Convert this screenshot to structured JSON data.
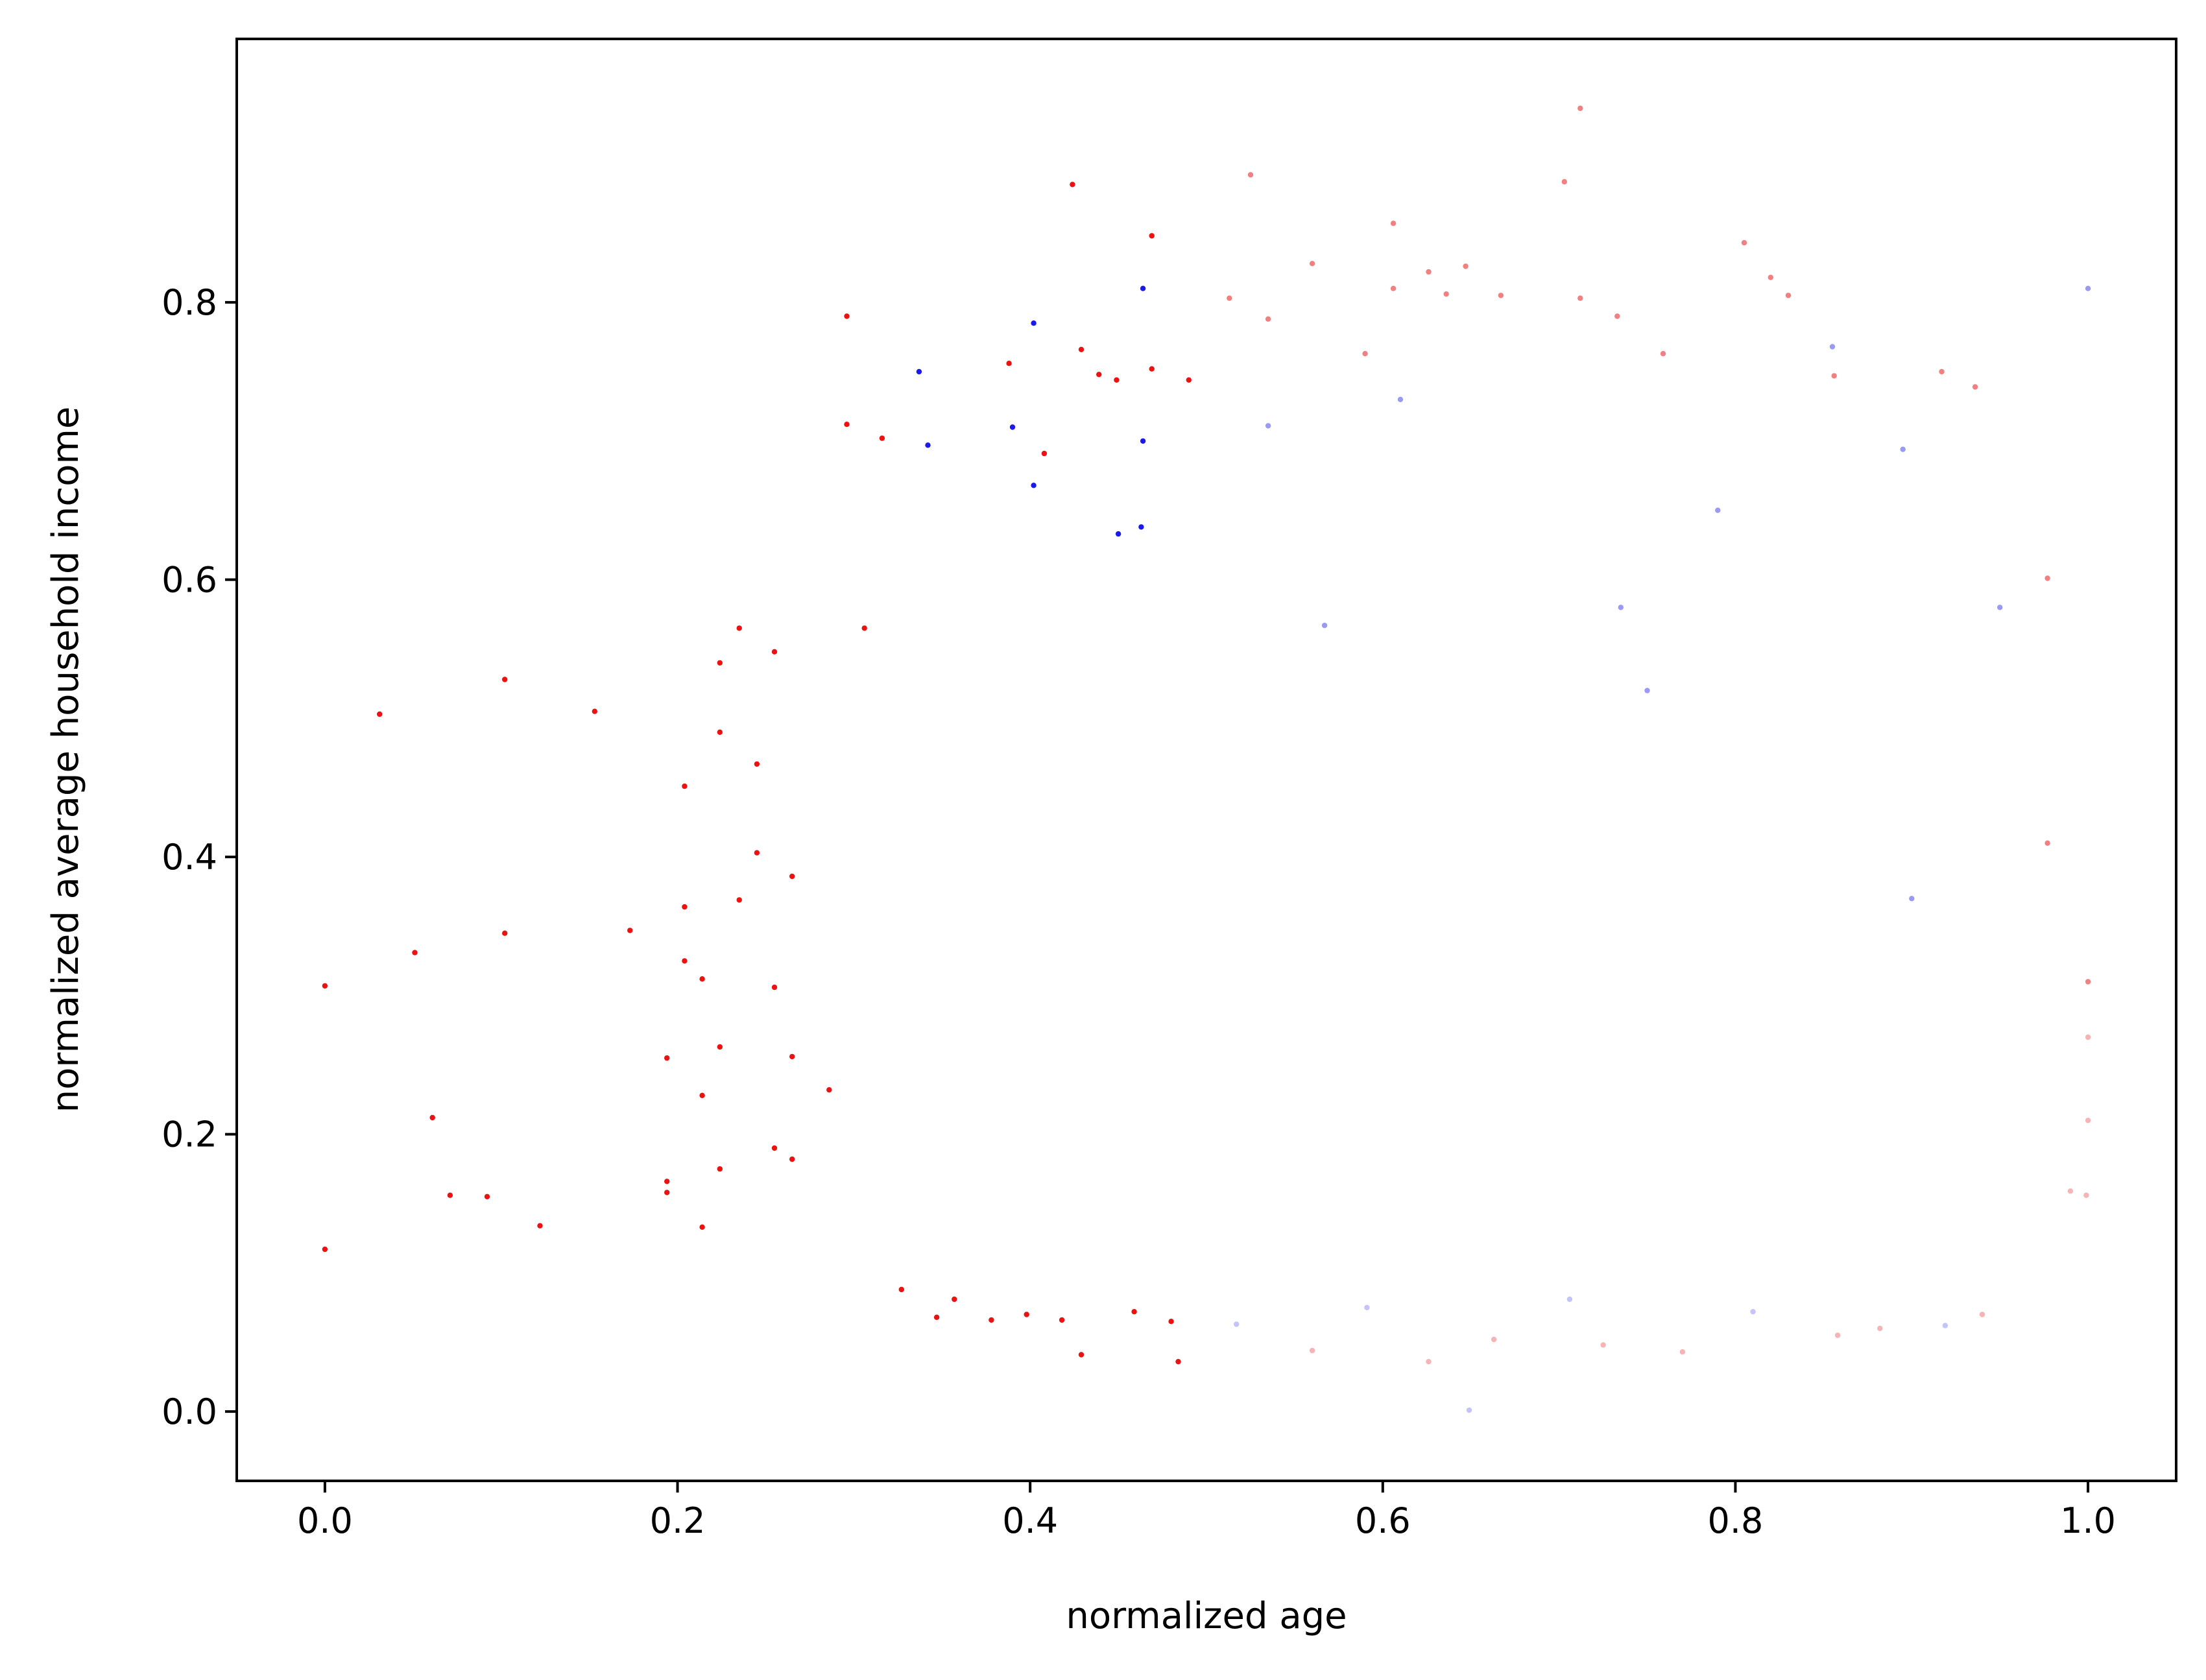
{
  "chart_data": {
    "type": "scatter",
    "title": "",
    "xlabel": "normalized age",
    "ylabel": "normalized average household income",
    "xlim": [
      -0.05,
      1.05
    ],
    "ylim": [
      -0.05,
      0.99
    ],
    "xticks": [
      0.0,
      0.2,
      0.4,
      0.6,
      0.8,
      1.0
    ],
    "xtick_labels": [
      "0.0",
      "0.2",
      "0.4",
      "0.6",
      "0.8",
      "1.0"
    ],
    "yticks": [
      0.0,
      0.2,
      0.4,
      0.6,
      0.8
    ],
    "ytick_labels": [
      "0.0",
      "0.2",
      "0.4",
      "0.6",
      "0.8"
    ],
    "grid": false,
    "legend": "none",
    "colors": {
      "red_strong": "#ee1111",
      "blue_strong": "#1a1aee",
      "red_faded": "#f38080",
      "red_pale": "#f8b4b4",
      "blue_faded": "#9a9af4",
      "blue_pale": "#c4c4fa"
    },
    "series": [
      {
        "color_key": "red_strong",
        "points": [
          [
            0.0,
            0.307
          ],
          [
            0.0,
            0.117
          ],
          [
            0.031,
            0.503
          ],
          [
            0.051,
            0.331
          ],
          [
            0.061,
            0.212
          ],
          [
            0.071,
            0.156
          ],
          [
            0.092,
            0.155
          ],
          [
            0.102,
            0.528
          ],
          [
            0.102,
            0.345
          ],
          [
            0.122,
            0.134
          ],
          [
            0.153,
            0.505
          ],
          [
            0.173,
            0.347
          ],
          [
            0.194,
            0.255
          ],
          [
            0.194,
            0.166
          ],
          [
            0.194,
            0.158
          ],
          [
            0.204,
            0.451
          ],
          [
            0.204,
            0.364
          ],
          [
            0.204,
            0.325
          ],
          [
            0.214,
            0.312
          ],
          [
            0.214,
            0.228
          ],
          [
            0.214,
            0.133
          ],
          [
            0.224,
            0.54
          ],
          [
            0.224,
            0.49
          ],
          [
            0.224,
            0.263
          ],
          [
            0.224,
            0.175
          ],
          [
            0.235,
            0.565
          ],
          [
            0.235,
            0.369
          ],
          [
            0.245,
            0.467
          ],
          [
            0.245,
            0.403
          ],
          [
            0.255,
            0.548
          ],
          [
            0.255,
            0.306
          ],
          [
            0.255,
            0.19
          ],
          [
            0.265,
            0.386
          ],
          [
            0.265,
            0.256
          ],
          [
            0.265,
            0.182
          ],
          [
            0.286,
            0.232
          ],
          [
            0.296,
            0.79
          ],
          [
            0.296,
            0.712
          ],
          [
            0.306,
            0.565
          ],
          [
            0.316,
            0.702
          ],
          [
            0.327,
            0.088
          ],
          [
            0.347,
            0.068
          ],
          [
            0.357,
            0.081
          ],
          [
            0.378,
            0.066
          ],
          [
            0.388,
            0.756
          ],
          [
            0.398,
            0.07
          ],
          [
            0.408,
            0.691
          ],
          [
            0.418,
            0.066
          ],
          [
            0.424,
            0.885
          ],
          [
            0.429,
            0.041
          ],
          [
            0.429,
            0.766
          ],
          [
            0.439,
            0.748
          ],
          [
            0.449,
            0.744
          ],
          [
            0.459,
            0.072
          ],
          [
            0.469,
            0.848
          ],
          [
            0.469,
            0.752
          ],
          [
            0.48,
            0.065
          ],
          [
            0.484,
            0.036
          ],
          [
            0.49,
            0.744
          ]
        ]
      },
      {
        "color_key": "blue_strong",
        "points": [
          [
            0.337,
            0.75
          ],
          [
            0.342,
            0.697
          ],
          [
            0.39,
            0.71
          ],
          [
            0.402,
            0.785
          ],
          [
            0.402,
            0.668
          ],
          [
            0.45,
            0.633
          ],
          [
            0.464,
            0.81
          ],
          [
            0.464,
            0.7
          ],
          [
            0.463,
            0.638
          ]
        ]
      },
      {
        "color_key": "red_faded",
        "points": [
          [
            0.513,
            0.803
          ],
          [
            0.525,
            0.892
          ],
          [
            0.535,
            0.788
          ],
          [
            0.56,
            0.828
          ],
          [
            0.59,
            0.763
          ],
          [
            0.606,
            0.857
          ],
          [
            0.606,
            0.81
          ],
          [
            0.626,
            0.822
          ],
          [
            0.636,
            0.806
          ],
          [
            0.647,
            0.826
          ],
          [
            0.667,
            0.805
          ],
          [
            0.703,
            0.887
          ],
          [
            0.712,
            0.94
          ],
          [
            0.712,
            0.803
          ],
          [
            0.733,
            0.79
          ],
          [
            0.759,
            0.763
          ],
          [
            0.805,
            0.843
          ],
          [
            0.82,
            0.818
          ],
          [
            0.83,
            0.805
          ],
          [
            0.856,
            0.747
          ],
          [
            0.917,
            0.75
          ],
          [
            0.936,
            0.739
          ],
          [
            0.977,
            0.601
          ],
          [
            0.977,
            0.41
          ],
          [
            1.0,
            0.31
          ]
        ]
      },
      {
        "color_key": "blue_faded",
        "points": [
          [
            0.535,
            0.711
          ],
          [
            0.567,
            0.567
          ],
          [
            0.61,
            0.73
          ],
          [
            0.735,
            0.58
          ],
          [
            0.79,
            0.65
          ],
          [
            0.855,
            0.768
          ],
          [
            0.895,
            0.694
          ],
          [
            0.95,
            0.58
          ],
          [
            0.9,
            0.37
          ],
          [
            1.0,
            0.81
          ],
          [
            0.75,
            0.52
          ]
        ]
      },
      {
        "color_key": "blue_pale",
        "points": [
          [
            0.517,
            0.063
          ],
          [
            0.591,
            0.075
          ],
          [
            0.649,
            0.001
          ],
          [
            0.706,
            0.081
          ],
          [
            0.81,
            0.072
          ],
          [
            0.919,
            0.062
          ]
        ]
      },
      {
        "color_key": "red_pale",
        "points": [
          [
            0.56,
            0.044
          ],
          [
            0.626,
            0.036
          ],
          [
            0.663,
            0.052
          ],
          [
            0.725,
            0.048
          ],
          [
            0.77,
            0.043
          ],
          [
            0.858,
            0.055
          ],
          [
            0.882,
            0.06
          ],
          [
            0.94,
            0.07
          ],
          [
            0.99,
            0.159
          ],
          [
            0.999,
            0.156
          ],
          [
            1.0,
            0.21
          ],
          [
            1.0,
            0.27
          ]
        ]
      }
    ]
  }
}
